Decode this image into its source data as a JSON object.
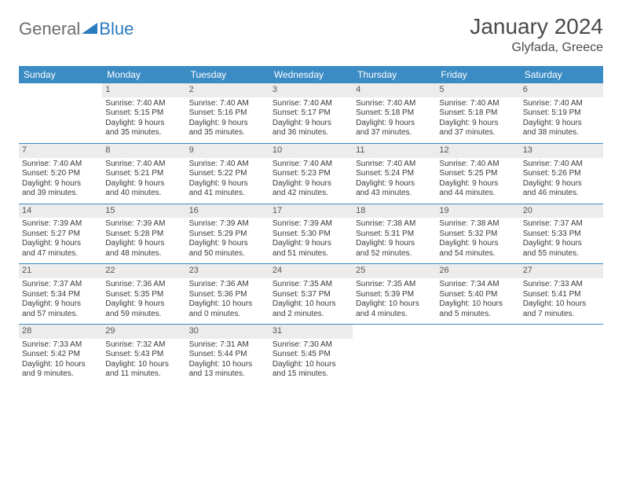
{
  "logo": {
    "general": "General",
    "blue": "Blue"
  },
  "title": "January 2024",
  "location": "Glyfada, Greece",
  "colors": {
    "header_bg": "#3b8bc4",
    "header_text": "#ffffff",
    "daynum_bg": "#ececec",
    "text": "#3a3a3a",
    "title_text": "#4a4a4a",
    "logo_gray": "#6b6b6b",
    "logo_blue": "#2a7bbf",
    "page_bg": "#ffffff"
  },
  "day_headers": [
    "Sunday",
    "Monday",
    "Tuesday",
    "Wednesday",
    "Thursday",
    "Friday",
    "Saturday"
  ],
  "weeks": [
    [
      {
        "n": "",
        "sr": "",
        "ss": "",
        "dl1": "",
        "dl2": "",
        "empty": true
      },
      {
        "n": "1",
        "sr": "Sunrise: 7:40 AM",
        "ss": "Sunset: 5:15 PM",
        "dl1": "Daylight: 9 hours",
        "dl2": "and 35 minutes."
      },
      {
        "n": "2",
        "sr": "Sunrise: 7:40 AM",
        "ss": "Sunset: 5:16 PM",
        "dl1": "Daylight: 9 hours",
        "dl2": "and 35 minutes."
      },
      {
        "n": "3",
        "sr": "Sunrise: 7:40 AM",
        "ss": "Sunset: 5:17 PM",
        "dl1": "Daylight: 9 hours",
        "dl2": "and 36 minutes."
      },
      {
        "n": "4",
        "sr": "Sunrise: 7:40 AM",
        "ss": "Sunset: 5:18 PM",
        "dl1": "Daylight: 9 hours",
        "dl2": "and 37 minutes."
      },
      {
        "n": "5",
        "sr": "Sunrise: 7:40 AM",
        "ss": "Sunset: 5:18 PM",
        "dl1": "Daylight: 9 hours",
        "dl2": "and 37 minutes."
      },
      {
        "n": "6",
        "sr": "Sunrise: 7:40 AM",
        "ss": "Sunset: 5:19 PM",
        "dl1": "Daylight: 9 hours",
        "dl2": "and 38 minutes."
      }
    ],
    [
      {
        "n": "7",
        "sr": "Sunrise: 7:40 AM",
        "ss": "Sunset: 5:20 PM",
        "dl1": "Daylight: 9 hours",
        "dl2": "and 39 minutes."
      },
      {
        "n": "8",
        "sr": "Sunrise: 7:40 AM",
        "ss": "Sunset: 5:21 PM",
        "dl1": "Daylight: 9 hours",
        "dl2": "and 40 minutes."
      },
      {
        "n": "9",
        "sr": "Sunrise: 7:40 AM",
        "ss": "Sunset: 5:22 PM",
        "dl1": "Daylight: 9 hours",
        "dl2": "and 41 minutes."
      },
      {
        "n": "10",
        "sr": "Sunrise: 7:40 AM",
        "ss": "Sunset: 5:23 PM",
        "dl1": "Daylight: 9 hours",
        "dl2": "and 42 minutes."
      },
      {
        "n": "11",
        "sr": "Sunrise: 7:40 AM",
        "ss": "Sunset: 5:24 PM",
        "dl1": "Daylight: 9 hours",
        "dl2": "and 43 minutes."
      },
      {
        "n": "12",
        "sr": "Sunrise: 7:40 AM",
        "ss": "Sunset: 5:25 PM",
        "dl1": "Daylight: 9 hours",
        "dl2": "and 44 minutes."
      },
      {
        "n": "13",
        "sr": "Sunrise: 7:40 AM",
        "ss": "Sunset: 5:26 PM",
        "dl1": "Daylight: 9 hours",
        "dl2": "and 46 minutes."
      }
    ],
    [
      {
        "n": "14",
        "sr": "Sunrise: 7:39 AM",
        "ss": "Sunset: 5:27 PM",
        "dl1": "Daylight: 9 hours",
        "dl2": "and 47 minutes."
      },
      {
        "n": "15",
        "sr": "Sunrise: 7:39 AM",
        "ss": "Sunset: 5:28 PM",
        "dl1": "Daylight: 9 hours",
        "dl2": "and 48 minutes."
      },
      {
        "n": "16",
        "sr": "Sunrise: 7:39 AM",
        "ss": "Sunset: 5:29 PM",
        "dl1": "Daylight: 9 hours",
        "dl2": "and 50 minutes."
      },
      {
        "n": "17",
        "sr": "Sunrise: 7:39 AM",
        "ss": "Sunset: 5:30 PM",
        "dl1": "Daylight: 9 hours",
        "dl2": "and 51 minutes."
      },
      {
        "n": "18",
        "sr": "Sunrise: 7:38 AM",
        "ss": "Sunset: 5:31 PM",
        "dl1": "Daylight: 9 hours",
        "dl2": "and 52 minutes."
      },
      {
        "n": "19",
        "sr": "Sunrise: 7:38 AM",
        "ss": "Sunset: 5:32 PM",
        "dl1": "Daylight: 9 hours",
        "dl2": "and 54 minutes."
      },
      {
        "n": "20",
        "sr": "Sunrise: 7:37 AM",
        "ss": "Sunset: 5:33 PM",
        "dl1": "Daylight: 9 hours",
        "dl2": "and 55 minutes."
      }
    ],
    [
      {
        "n": "21",
        "sr": "Sunrise: 7:37 AM",
        "ss": "Sunset: 5:34 PM",
        "dl1": "Daylight: 9 hours",
        "dl2": "and 57 minutes."
      },
      {
        "n": "22",
        "sr": "Sunrise: 7:36 AM",
        "ss": "Sunset: 5:35 PM",
        "dl1": "Daylight: 9 hours",
        "dl2": "and 59 minutes."
      },
      {
        "n": "23",
        "sr": "Sunrise: 7:36 AM",
        "ss": "Sunset: 5:36 PM",
        "dl1": "Daylight: 10 hours",
        "dl2": "and 0 minutes."
      },
      {
        "n": "24",
        "sr": "Sunrise: 7:35 AM",
        "ss": "Sunset: 5:37 PM",
        "dl1": "Daylight: 10 hours",
        "dl2": "and 2 minutes."
      },
      {
        "n": "25",
        "sr": "Sunrise: 7:35 AM",
        "ss": "Sunset: 5:39 PM",
        "dl1": "Daylight: 10 hours",
        "dl2": "and 4 minutes."
      },
      {
        "n": "26",
        "sr": "Sunrise: 7:34 AM",
        "ss": "Sunset: 5:40 PM",
        "dl1": "Daylight: 10 hours",
        "dl2": "and 5 minutes."
      },
      {
        "n": "27",
        "sr": "Sunrise: 7:33 AM",
        "ss": "Sunset: 5:41 PM",
        "dl1": "Daylight: 10 hours",
        "dl2": "and 7 minutes."
      }
    ],
    [
      {
        "n": "28",
        "sr": "Sunrise: 7:33 AM",
        "ss": "Sunset: 5:42 PM",
        "dl1": "Daylight: 10 hours",
        "dl2": "and 9 minutes."
      },
      {
        "n": "29",
        "sr": "Sunrise: 7:32 AM",
        "ss": "Sunset: 5:43 PM",
        "dl1": "Daylight: 10 hours",
        "dl2": "and 11 minutes."
      },
      {
        "n": "30",
        "sr": "Sunrise: 7:31 AM",
        "ss": "Sunset: 5:44 PM",
        "dl1": "Daylight: 10 hours",
        "dl2": "and 13 minutes."
      },
      {
        "n": "31",
        "sr": "Sunrise: 7:30 AM",
        "ss": "Sunset: 5:45 PM",
        "dl1": "Daylight: 10 hours",
        "dl2": "and 15 minutes."
      },
      {
        "n": "",
        "sr": "",
        "ss": "",
        "dl1": "",
        "dl2": "",
        "empty": true
      },
      {
        "n": "",
        "sr": "",
        "ss": "",
        "dl1": "",
        "dl2": "",
        "empty": true
      },
      {
        "n": "",
        "sr": "",
        "ss": "",
        "dl1": "",
        "dl2": "",
        "empty": true
      }
    ]
  ]
}
